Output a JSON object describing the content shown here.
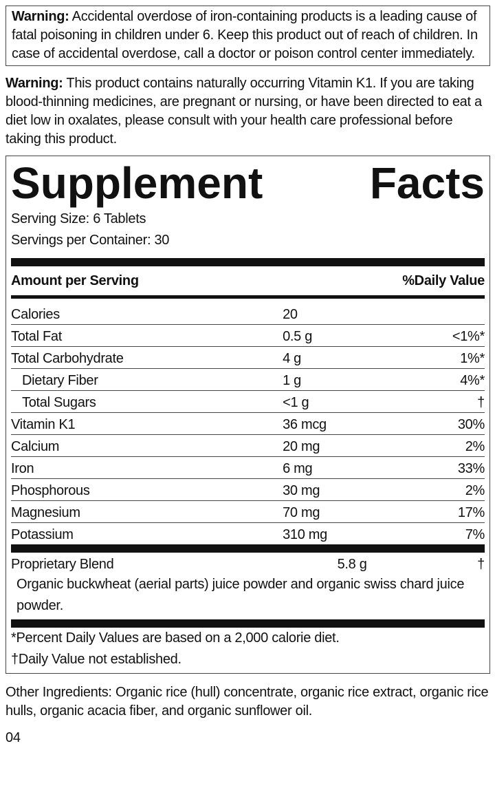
{
  "warnings": [
    {
      "label": "Warning:",
      "text": "Accidental overdose of iron-containing products is a leading cause of fatal poisoning in children under 6. Keep this product out of reach of children. In case of accidental overdose, call a doctor or poison control center immediately.",
      "boxed": true
    },
    {
      "label": "Warning:",
      "text": "This product contains naturally occurring Vitamin K1. If you are taking blood-thinning medicines, are pregnant or nursing, or have been directed to eat a diet low in oxalates, please consult with your health care professional before taking this product.",
      "boxed": false
    }
  ],
  "facts": {
    "title": "Supplement Facts",
    "serving_size": "Serving Size: 6 Tablets",
    "servings_per_container": "Servings per Container: 30",
    "headers": [
      "Amount per Serving",
      "%Daily Value"
    ],
    "rows": [
      {
        "name": "Calories",
        "amount": "20",
        "dv": null,
        "indent": false
      },
      {
        "name": "Total Fat",
        "amount": "0.5 g",
        "dv": "<1%*",
        "indent": false
      },
      {
        "name": "Total Carbohydrate",
        "amount": "4 g",
        "dv": "1%*",
        "indent": false
      },
      {
        "name": "Dietary Fiber",
        "amount": "1 g",
        "dv": "4%*",
        "indent": true
      },
      {
        "name": "Total Sugars",
        "amount": "<1 g",
        "dv": "†",
        "indent": true
      },
      {
        "name": "Vitamin K1",
        "amount": "36 mcg",
        "dv": "30%",
        "indent": false
      },
      {
        "name": "Calcium",
        "amount": "20 mg",
        "dv": "2%",
        "indent": false
      },
      {
        "name": "Iron",
        "amount": "6 mg",
        "dv": "33%",
        "indent": false
      },
      {
        "name": "Phosphorous",
        "amount": "30 mg",
        "dv": "2%",
        "indent": false
      },
      {
        "name": "Magnesium",
        "amount": "70 mg",
        "dv": "17%",
        "indent": false
      },
      {
        "name": "Potassium",
        "amount": "310 mg",
        "dv": "7%",
        "indent": false
      }
    ],
    "blend": {
      "name": "Proprietary Blend",
      "amount": "5.8 g",
      "dv": "†",
      "description": "Organic buckwheat (aerial parts) juice powder and organic swiss chard juice powder."
    },
    "footnotes": [
      "*Percent Daily Values are based on a 2,000 calorie diet.",
      "†Daily Value not established."
    ]
  },
  "other_ingredients": "Other Ingredients: Organic rice (hull) concentrate, organic rice extract, organic rice hulls, organic acacia fiber, and organic sunflower oil.",
  "code": "04"
}
